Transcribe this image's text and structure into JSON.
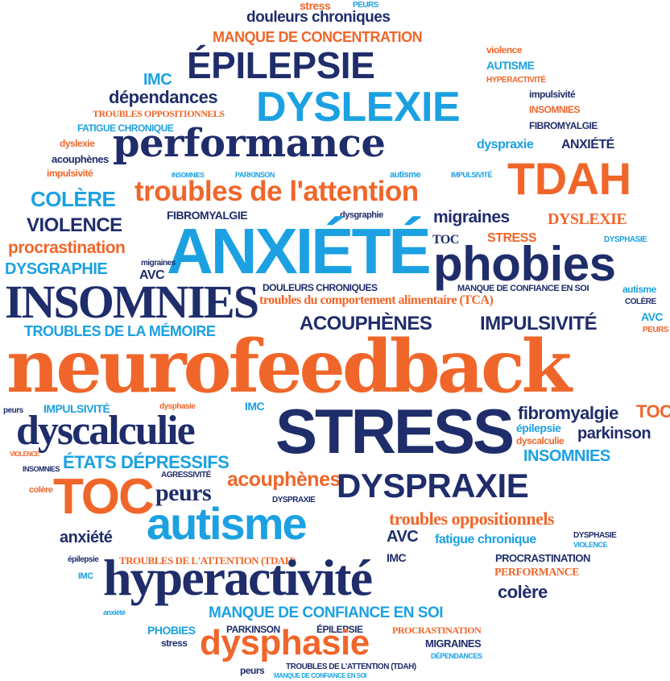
{
  "colors": {
    "navy": "#1f2d6b",
    "orange": "#f0662a",
    "blue": "#1ba1e2"
  },
  "words": {
    "w1": "stress",
    "w2": "PEURS",
    "w3": "douleurs chroniques",
    "w4": "MANQUE DE CONCENTRATION",
    "w5": "ÉPILEPSIE",
    "w6": "violence",
    "w7": "AUTISME",
    "w8": "HYPERACTIVITÉ",
    "w9": "IMC",
    "w10": "dépendances",
    "w11": "DYSLEXIE",
    "w12": "impulsivité",
    "w13": "INSOMNIES",
    "w14": "TROUBLES OPPOSITIONNELS",
    "w15": "FATIGUE CHRONIQUE",
    "w16": "FIBROMYALGIE",
    "w17": "dyslexie",
    "w18": "performance",
    "w19": "dyspraxie",
    "w20": "ANXIÉTÉ",
    "w21": "acouphènes",
    "w22": "impulsivité",
    "w23": "TDAH",
    "w24": "INSOMNIES",
    "w25": "PARKINSON",
    "w26": "autisme",
    "w27": "IMPULSIVITÉ",
    "w28": "troubles de l'attention",
    "w29": "COLÈRE",
    "w30": "VIOLENCE",
    "w31": "FIBROMYALGIE",
    "w32": "dysgraphie",
    "w33": "migraines",
    "w34": "DYSLEXIE",
    "w35": "ANXIÉTÉ",
    "w36": "procrastination",
    "w37": "TOC",
    "w38": "STRESS",
    "w39": "DYSPHASIE",
    "w40": "DYSGRAPHIE",
    "w41": "migraines",
    "w42": "AVC",
    "w43": "phobies",
    "w44": "INSOMNIES",
    "w45": "DOULEURS CHRONIQUES",
    "w46": "MANQUE DE CONFIANCE EN SOI",
    "w47": "autisme",
    "w48": "troubles du comportement alimentaire (TCA)",
    "w49": "COLÈRE",
    "w50": "TROUBLES DE LA MÉMOIRE",
    "w51": "ACOUPHÈNES",
    "w52": "IMPULSIVITÉ",
    "w53": "AVC",
    "w54": "PEURS",
    "w55": "neurofeedback",
    "w56": "peurs",
    "w57": "IMPULSIVITÉ",
    "w58": "dysphasie",
    "w59": "IMC",
    "w60": "STRESS",
    "w61": "fibromyalgie",
    "w62": "TOC",
    "w63": "dyscalculie",
    "w64": "épilepsie",
    "w65": "parkinson",
    "w66": "dyscalculie",
    "w67": "VIOLENCE",
    "w68": "ÉTATS DÉPRESSIFS",
    "w69": "INSOMNIES",
    "w70": "INSOMNIES",
    "w71": "AGRESSIVITÉ",
    "w72": "acouphènes",
    "w73": "TOC",
    "w74": "colère",
    "w75": "peurs",
    "w76": "DYSPRAXIE",
    "w77": "DYSPRAXIE",
    "w78": "autisme",
    "w79": "troubles oppositionnels",
    "w80": "anxiété",
    "w81": "AVC",
    "w82": "fatigue chronique",
    "w83": "DYSPHASIE",
    "w84": "VIOLENCE",
    "w85": "épilepsie",
    "w86": "TROUBLES DE L'ATTENTION (TDAH)",
    "w87": "IMC",
    "w88": "PROCRASTINATION",
    "w89": "IMC",
    "w90": "hyperactivité",
    "w91": "PERFORMANCE",
    "w92": "colère",
    "w93": "anxiété",
    "w94": "MANQUE DE CONFIANCE EN SOI",
    "w95": "PHOBIES",
    "w96": "PARKINSON",
    "w97": "ÉPILEPSIE",
    "w98": "PROCRASTINATION",
    "w99": "stress",
    "w100": "dysphasie",
    "w101": "MIGRAINES",
    "w102": "DÉPENDANCES",
    "w103": "peurs",
    "w104": "TROUBLES DE L'ATTENTION (TDAH)",
    "w105": "MANQUE DE CONFIANCE EN SOI"
  }
}
